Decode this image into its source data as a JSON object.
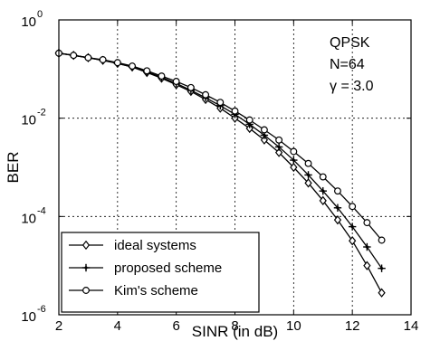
{
  "chart_data": {
    "type": "line",
    "xlabel": "SINR (in dB)",
    "ylabel": "BER",
    "xlim": [
      2,
      14
    ],
    "ylim": [
      1e-06,
      1
    ],
    "y_scale": "log",
    "grid": true,
    "legend_position": "bottom-left",
    "x_ticks": [
      "2",
      "4",
      "6",
      "8",
      "10",
      "12",
      "14"
    ],
    "y_ticks": [
      {
        "base": "10",
        "exp": "0"
      },
      {
        "base": "10",
        "exp": "-2"
      },
      {
        "base": "10",
        "exp": "-4"
      },
      {
        "base": "10",
        "exp": "-6"
      }
    ],
    "annotation": [
      "QPSK",
      "N=64",
      "γ = 3.0"
    ],
    "series": [
      {
        "name": "ideal systems",
        "marker": "diamond",
        "x": [
          2,
          2.5,
          3,
          3.5,
          4,
          4.5,
          5,
          5.5,
          6,
          6.5,
          7,
          7.5,
          8,
          8.5,
          9,
          9.5,
          10,
          10.5,
          11,
          11.5,
          12,
          12.5,
          13
        ],
        "y": [
          0.21,
          0.19,
          0.17,
          0.15,
          0.13,
          0.11,
          0.085,
          0.065,
          0.048,
          0.035,
          0.024,
          0.016,
          0.01,
          0.0062,
          0.0036,
          0.002,
          0.001,
          0.00048,
          0.00021,
          8.5e-05,
          3.2e-05,
          1e-05,
          2.8e-06
        ]
      },
      {
        "name": "proposed scheme",
        "marker": "plus",
        "x": [
          2,
          2.5,
          3,
          3.5,
          4,
          4.5,
          5,
          5.5,
          6,
          6.5,
          7,
          7.5,
          8,
          8.5,
          9,
          9.5,
          10,
          10.5,
          11,
          11.5,
          12,
          12.5,
          13
        ],
        "y": [
          0.21,
          0.19,
          0.17,
          0.15,
          0.13,
          0.11,
          0.088,
          0.068,
          0.051,
          0.037,
          0.026,
          0.018,
          0.012,
          0.0075,
          0.0045,
          0.0026,
          0.0014,
          0.0007,
          0.00033,
          0.00015,
          6.2e-05,
          2.4e-05,
          8.8e-06
        ]
      },
      {
        "name": "Kim's scheme",
        "marker": "circle",
        "x": [
          2,
          2.5,
          3,
          3.5,
          4,
          4.5,
          5,
          5.5,
          6,
          6.5,
          7,
          7.5,
          8,
          8.5,
          9,
          9.5,
          10,
          10.5,
          11,
          11.5,
          12,
          12.5,
          13
        ],
        "y": [
          0.21,
          0.19,
          0.17,
          0.155,
          0.135,
          0.115,
          0.092,
          0.072,
          0.056,
          0.042,
          0.03,
          0.021,
          0.014,
          0.0092,
          0.0058,
          0.0036,
          0.0021,
          0.0012,
          0.00064,
          0.00033,
          0.00016,
          7.5e-05,
          3.3e-05
        ]
      }
    ]
  }
}
